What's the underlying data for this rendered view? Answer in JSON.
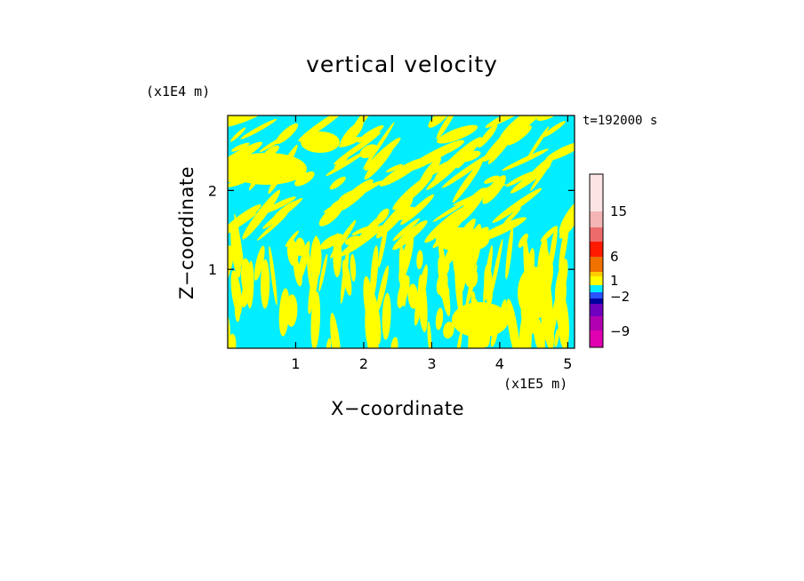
{
  "chart_data": {
    "type": "heatmap",
    "title": "vertical velocity",
    "xlabel": "X−coordinate",
    "ylabel": "Z−coordinate",
    "x_scale_label": "(x1E5 m)",
    "y_scale_label": "(x1E4 m)",
    "time_label": "t=192000 s",
    "xlim": [
      0,
      5.1
    ],
    "ylim": [
      0,
      2.95
    ],
    "x_ticks": [
      1,
      2,
      3,
      4,
      5
    ],
    "y_ticks": [
      1,
      2
    ],
    "x_tick_labels": [
      "1",
      "2",
      "3",
      "4",
      "5"
    ],
    "y_tick_labels": [
      "1",
      "2"
    ],
    "dominant_fill_colors": [
      "#00eeff",
      "#ffff00"
    ],
    "colorbar": {
      "tick_labels": [
        "15",
        "6",
        "1",
        "−2",
        "−9"
      ],
      "tick_values": [
        15,
        6,
        1,
        -2,
        -9
      ],
      "levels_top_to_bottom": [
        {
          "color": "#fde4e4"
        },
        {
          "color": "#f4b5b5"
        },
        {
          "color": "#ee6b6b"
        },
        {
          "color": "#ff1a00"
        },
        {
          "color": "#f07000"
        },
        {
          "color": "#ffcc00"
        },
        {
          "color": "#ffff00"
        },
        {
          "color": "#00eeff"
        },
        {
          "color": "#2a52ff"
        },
        {
          "color": "#0000a0"
        },
        {
          "color": "#7000c0"
        },
        {
          "color": "#b000b0"
        },
        {
          "color": "#e000b0"
        }
      ]
    }
  }
}
